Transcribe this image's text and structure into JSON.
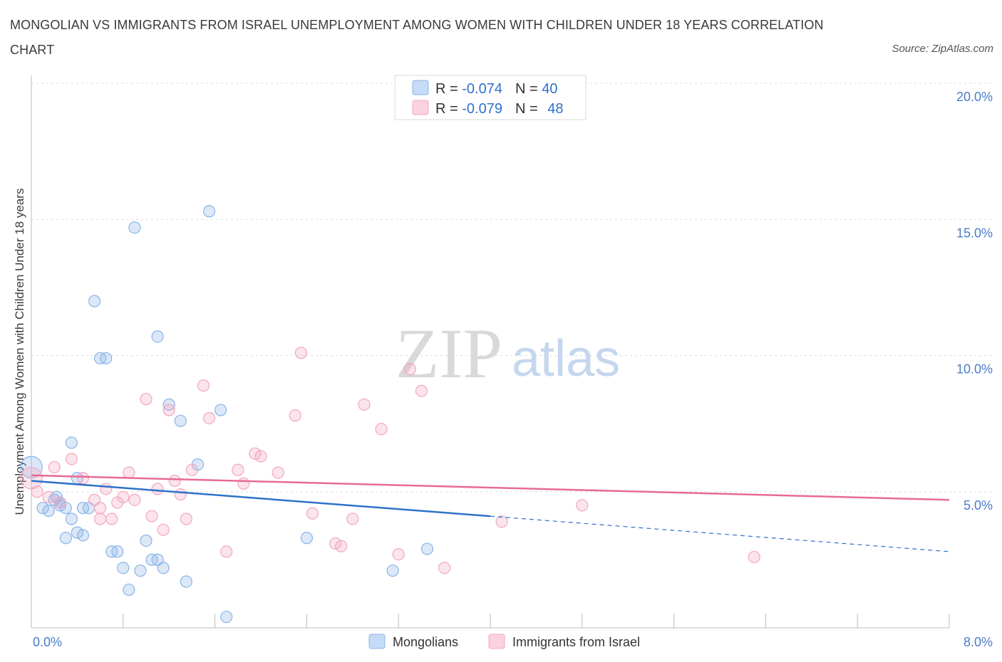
{
  "title": "MONGOLIAN VS IMMIGRANTS FROM ISRAEL UNEMPLOYMENT AMONG WOMEN WITH CHILDREN UNDER 18 YEARS CORRELATION CHART",
  "source": "Source: ZipAtlas.com",
  "watermark": {
    "zip": "ZIP",
    "atlas": "atlas"
  },
  "stats": [
    {
      "r_label": "R = ",
      "r_value": "-0.074",
      "n_label": "N = ",
      "n_value": "40"
    },
    {
      "r_label": "R = ",
      "r_value": "-0.079",
      "n_label": "N = ",
      "n_value": "48"
    }
  ],
  "chart_data": {
    "type": "scatter",
    "ylabel": "Unemployment Among Women with Children Under 18 years",
    "xlim": [
      0,
      8
    ],
    "ylim": [
      0,
      20
    ],
    "x_tick_labels": [
      "0.0%",
      "8.0%"
    ],
    "y_ticks": [
      5,
      10,
      15,
      20
    ],
    "y_tick_labels": [
      "5.0%",
      "10.0%",
      "15.0%",
      "20.0%"
    ],
    "grid": true,
    "legend_position": "bottom-center",
    "series": [
      {
        "name": "Mongolians",
        "color": "#8ab4e8",
        "line_color": "#2f72c8",
        "trend": {
          "x0": 0.0,
          "y0": 5.4,
          "x1": 4.0,
          "y1": 4.1,
          "dash_to_x": 8.0,
          "dash_to_y": 2.8
        },
        "points": [
          [
            0.0,
            5.9
          ],
          [
            0.1,
            4.4
          ],
          [
            0.15,
            4.3
          ],
          [
            0.2,
            4.7
          ],
          [
            0.25,
            4.6
          ],
          [
            0.22,
            4.8
          ],
          [
            0.25,
            4.5
          ],
          [
            0.3,
            4.4
          ],
          [
            0.3,
            3.3
          ],
          [
            0.35,
            4.0
          ],
          [
            0.35,
            6.8
          ],
          [
            0.4,
            5.5
          ],
          [
            0.4,
            3.5
          ],
          [
            0.45,
            4.4
          ],
          [
            0.5,
            4.4
          ],
          [
            0.55,
            12.0
          ],
          [
            0.6,
            9.9
          ],
          [
            0.65,
            9.9
          ],
          [
            0.7,
            2.8
          ],
          [
            0.75,
            2.8
          ],
          [
            0.8,
            2.2
          ],
          [
            0.85,
            1.4
          ],
          [
            0.9,
            14.7
          ],
          [
            0.95,
            2.1
          ],
          [
            1.0,
            3.2
          ],
          [
            1.05,
            2.5
          ],
          [
            1.1,
            2.5
          ],
          [
            1.1,
            10.7
          ],
          [
            1.15,
            2.2
          ],
          [
            1.2,
            8.2
          ],
          [
            1.3,
            7.6
          ],
          [
            1.35,
            1.7
          ],
          [
            1.45,
            6.0
          ],
          [
            1.55,
            15.3
          ],
          [
            1.65,
            8.0
          ],
          [
            1.7,
            0.4
          ],
          [
            2.4,
            3.3
          ],
          [
            3.15,
            2.1
          ],
          [
            3.45,
            2.9
          ],
          [
            0.45,
            3.4
          ]
        ]
      },
      {
        "name": "Immigrants from Israel",
        "color": "#f2a7c0",
        "line_color": "#e86a95",
        "trend": {
          "x0": 0.0,
          "y0": 5.6,
          "x1": 8.0,
          "y1": 4.7
        },
        "points": [
          [
            0.0,
            5.5
          ],
          [
            0.05,
            5.0
          ],
          [
            0.15,
            4.8
          ],
          [
            0.2,
            5.9
          ],
          [
            0.35,
            6.2
          ],
          [
            0.45,
            5.5
          ],
          [
            0.55,
            4.7
          ],
          [
            0.6,
            4.0
          ],
          [
            0.65,
            5.1
          ],
          [
            0.7,
            4.0
          ],
          [
            0.75,
            4.6
          ],
          [
            0.8,
            4.8
          ],
          [
            0.85,
            5.7
          ],
          [
            0.9,
            4.7
          ],
          [
            1.0,
            8.4
          ],
          [
            1.05,
            4.1
          ],
          [
            1.1,
            5.1
          ],
          [
            1.15,
            3.6
          ],
          [
            1.2,
            8.0
          ],
          [
            1.25,
            5.4
          ],
          [
            1.3,
            4.9
          ],
          [
            1.35,
            4.0
          ],
          [
            1.4,
            5.8
          ],
          [
            1.5,
            8.9
          ],
          [
            1.55,
            7.7
          ],
          [
            1.7,
            2.8
          ],
          [
            1.8,
            5.8
          ],
          [
            1.85,
            5.3
          ],
          [
            1.95,
            6.4
          ],
          [
            2.0,
            6.3
          ],
          [
            2.15,
            5.7
          ],
          [
            2.3,
            7.8
          ],
          [
            2.35,
            10.1
          ],
          [
            2.45,
            4.2
          ],
          [
            2.65,
            3.1
          ],
          [
            2.7,
            3.0
          ],
          [
            2.8,
            4.0
          ],
          [
            2.9,
            8.2
          ],
          [
            3.05,
            7.3
          ],
          [
            3.2,
            2.7
          ],
          [
            3.3,
            9.5
          ],
          [
            3.4,
            8.7
          ],
          [
            3.6,
            2.2
          ],
          [
            4.1,
            3.9
          ],
          [
            4.8,
            4.5
          ],
          [
            6.3,
            2.6
          ],
          [
            0.25,
            4.6
          ],
          [
            0.6,
            4.4
          ]
        ]
      }
    ]
  }
}
